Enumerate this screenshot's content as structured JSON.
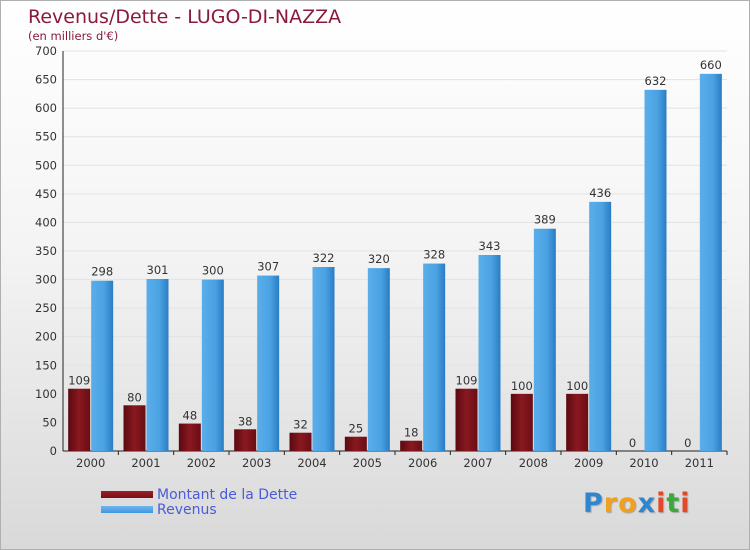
{
  "title": "Revenus/Dette - LUGO-DI-NAZZA",
  "subtitle": "(en milliers d'€)",
  "colors": {
    "dette": "#7a0f16",
    "revenus": "#3e97de",
    "title": "#8b1a3a",
    "legend_text": "#4a5bd8"
  },
  "chart_data": {
    "type": "bar",
    "title": "Revenus/Dette - LUGO-DI-NAZZA",
    "ylabel": "(en milliers d'€)",
    "categories": [
      "2000",
      "2001",
      "2002",
      "2003",
      "2004",
      "2005",
      "2006",
      "2007",
      "2008",
      "2009",
      "2010",
      "2011"
    ],
    "series": [
      {
        "name": "Montant de la Dette",
        "values": [
          109,
          80,
          48,
          38,
          32,
          25,
          18,
          109,
          100,
          100,
          0,
          0
        ]
      },
      {
        "name": "Revenus",
        "values": [
          298,
          301,
          300,
          307,
          322,
          320,
          328,
          343,
          389,
          436,
          632,
          660
        ]
      }
    ],
    "ylim": [
      0,
      700
    ],
    "yticks": [
      0,
      50,
      100,
      150,
      200,
      250,
      300,
      350,
      400,
      450,
      500,
      550,
      600,
      650,
      700
    ],
    "grid": true,
    "legend_position": "bottom-left"
  },
  "legend": {
    "dette_label": "Montant de la Dette",
    "revenus_label": "Revenus"
  },
  "logo": {
    "letters": [
      "P",
      "r",
      "o",
      "x",
      "i",
      "t",
      "i"
    ],
    "colors": [
      "#2e86d1",
      "#f0a020",
      "#f0a020",
      "#2e86d1",
      "#e04a2a",
      "#3aa83a",
      "#e04a2a"
    ]
  }
}
